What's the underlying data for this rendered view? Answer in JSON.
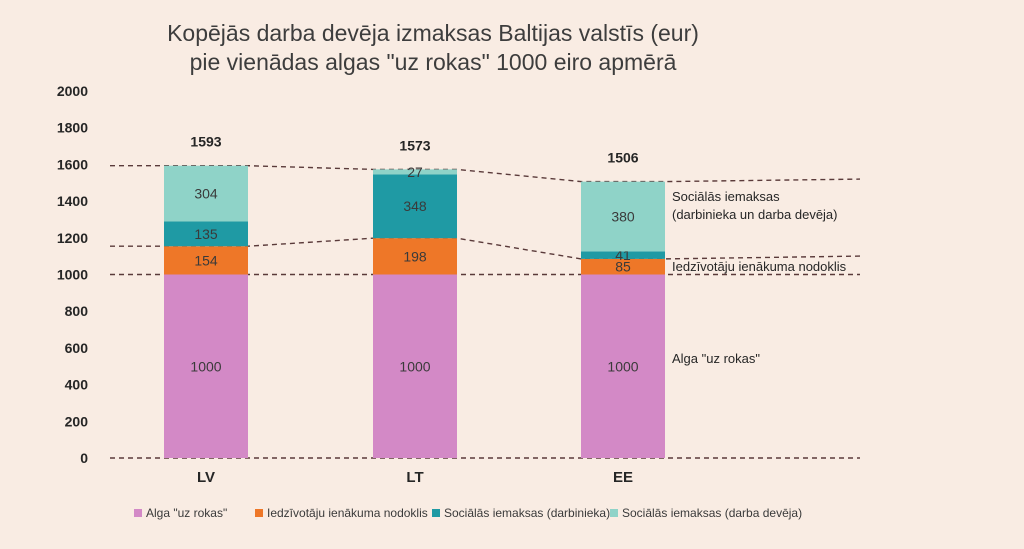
{
  "chart_data": {
    "type": "bar",
    "stacked": true,
    "title_lines": [
      "Kopējās darba devēja izmaksas Baltijas valstīs (eur)",
      "pie vienādas algas \"uz rokas\" 1000 eiro apmērā"
    ],
    "categories": [
      "LV",
      "LT",
      "EE"
    ],
    "series": [
      {
        "name": "Alga \"uz rokas\"",
        "color": "#d389c6",
        "values": [
          1000,
          1000,
          1000
        ],
        "labels": [
          "1000",
          "1000",
          "1000"
        ]
      },
      {
        "name": "Iedzīvotāju ienākuma nodoklis",
        "color": "#ee7728",
        "values": [
          154,
          198,
          85
        ],
        "labels": [
          "154",
          "198",
          "85"
        ]
      },
      {
        "name": "Sociālās iemaksas (darbinieka)",
        "color": "#1f9aa4",
        "values": [
          135,
          348,
          41
        ],
        "labels": [
          "135",
          "348",
          "41"
        ]
      },
      {
        "name": "Sociālās iemaksas (darba devēja)",
        "color": "#8fd3c8",
        "values": [
          304,
          27,
          380
        ],
        "labels": [
          "304",
          "27",
          "380"
        ]
      }
    ],
    "totals": [
      1593,
      1573,
      1506
    ],
    "total_labels": [
      "1593",
      "1573",
      "1506"
    ],
    "y_ticks": [
      0,
      200,
      400,
      600,
      800,
      1000,
      1200,
      1400,
      1600,
      1800,
      2000
    ],
    "y_tick_labels": [
      "0",
      "200",
      "400",
      "600",
      "800",
      "1000",
      "1200",
      "1400",
      "1600",
      "1800",
      "2000"
    ],
    "ylim": [
      0,
      2000
    ],
    "grid": false,
    "legend_position": "bottom",
    "annotations": [
      {
        "lines": [
          "Sociālās iemaksas",
          "(darbinieka un darba devēja)"
        ],
        "anchor_value": 1380
      },
      {
        "lines": [
          "Iedzīvotāju ienākuma nodoklis"
        ],
        "anchor_value": 1045
      },
      {
        "lines": [
          "Alga \"uz rokas\""
        ],
        "anchor_value": 545
      }
    ],
    "guide_lines": [
      {
        "name": "total-guide",
        "values": [
          1593,
          1573,
          1506
        ],
        "tail_value": 1520
      },
      {
        "name": "tax-guide",
        "values": [
          1154,
          1198,
          1085
        ],
        "tail_value": 1100
      },
      {
        "name": "net-guide",
        "values": [
          1000,
          1000,
          1000
        ],
        "tail_value": 1000
      },
      {
        "name": "zero-guide",
        "values": [
          0,
          0,
          0
        ],
        "tail_value": 0
      }
    ]
  }
}
